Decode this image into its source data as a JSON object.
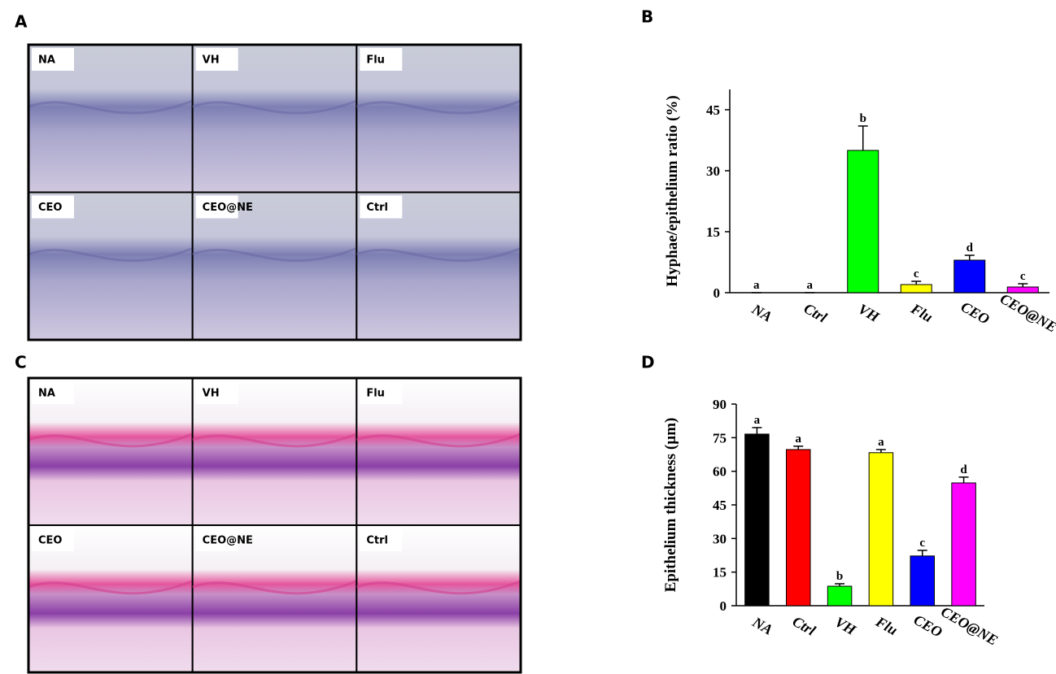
{
  "panel_labels": [
    "A",
    "B",
    "C",
    "D"
  ],
  "micrographs": {
    "A": [
      "NA",
      "VH",
      "Flu",
      "CEO",
      "CEO@NE",
      "Ctrl"
    ],
    "C": [
      "NA",
      "VH",
      "Flu",
      "CEO",
      "CEO@NE",
      "Ctrl"
    ]
  },
  "chart_data": [
    {
      "type": "bar",
      "y_label": "Hyphae/epithelium ratio (%)",
      "categories": [
        "NA",
        "Ctrl",
        "VH",
        "Flu",
        "CEO",
        "CEO@NE"
      ],
      "values": [
        0,
        0,
        35,
        2,
        8,
        1.4
      ],
      "errors": [
        0,
        0,
        6,
        0.8,
        1.2,
        0.8
      ],
      "annotations": [
        "a",
        "a",
        "b",
        "c",
        "d",
        "c"
      ],
      "colors": [
        "#000000",
        "#ff0000",
        "#00ff00",
        "#ffff00",
        "#0000ff",
        "#ff00ff"
      ],
      "ylim": [
        0,
        50
      ],
      "yticks": [
        0,
        15,
        30,
        45
      ]
    },
    {
      "type": "bar",
      "y_label": "Epithelium thickness (µm)",
      "categories": [
        "NA",
        "Ctrl",
        "VH",
        "Flu",
        "CEO",
        "CEO@NE"
      ],
      "values": [
        76.6,
        69.7,
        8.7,
        68.3,
        22.2,
        54.8
      ],
      "errors": [
        2.9,
        1.5,
        1.1,
        1.4,
        2.5,
        2.6
      ],
      "annotations": [
        "a",
        "a",
        "b",
        "a",
        "c",
        "d"
      ],
      "colors": [
        "#000000",
        "#ff0000",
        "#00ff00",
        "#ffff00",
        "#0000ff",
        "#ff00ff"
      ],
      "ylim": [
        0,
        90
      ],
      "yticks": [
        0,
        15,
        30,
        45,
        60,
        75,
        90
      ]
    }
  ]
}
